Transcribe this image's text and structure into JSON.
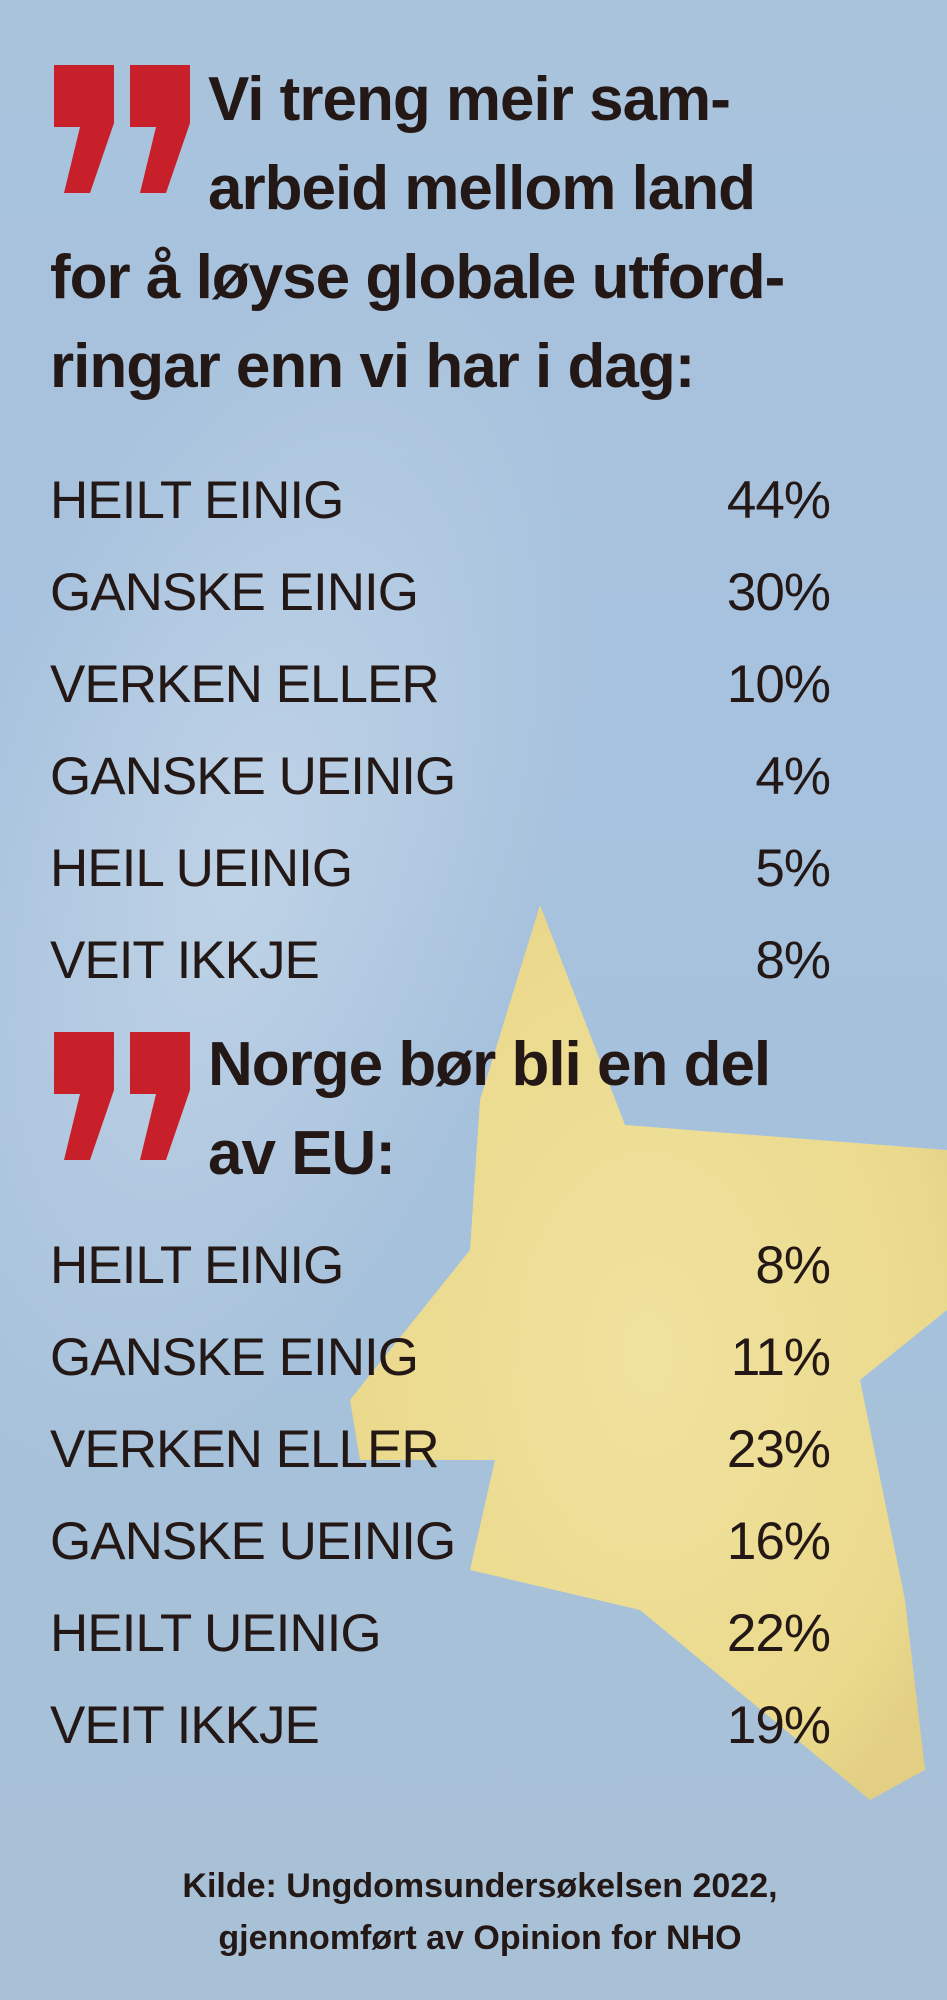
{
  "background": {
    "color": "#a7c2de",
    "star_color": "#f3e08f"
  },
  "accent": {
    "quote_color": "#c8202a"
  },
  "sections": [
    {
      "quote_icon": "quotation-mark-icon",
      "headline_lines": [
        "Vi treng meir sam-",
        "arbeid mellom land",
        "for å løyse globale utford-",
        "ringar enn vi har i dag:"
      ],
      "rows": [
        {
          "label": "HEILT EINIG",
          "value": "44%"
        },
        {
          "label": "GANSKE EINIG",
          "value": "30%"
        },
        {
          "label": "VERKEN ELLER",
          "value": "10%"
        },
        {
          "label": "GANSKE UEINIG",
          "value": "4%"
        },
        {
          "label": "HEIL UEINIG",
          "value": "5%"
        },
        {
          "label": "VEIT IKKJE",
          "value": "8%"
        }
      ]
    },
    {
      "quote_icon": "quotation-mark-icon",
      "headline_lines": [
        "Norge bør bli en del",
        "av EU:"
      ],
      "rows": [
        {
          "label": "HEILT EINIG",
          "value": "8%"
        },
        {
          "label": "GANSKE EINIG",
          "value": "11%"
        },
        {
          "label": "VERKEN ELLER",
          "value": "23%"
        },
        {
          "label": "GANSKE UEINIG",
          "value": "16%"
        },
        {
          "label": "HEILT UEINIG",
          "value": "22%"
        },
        {
          "label": "VEIT IKKJE",
          "value": "19%"
        }
      ]
    }
  ],
  "source": {
    "line1": "Kilde: Ungdomsundersøkelsen 2022,",
    "line2": "gjennomført av Opinion for NHO"
  }
}
